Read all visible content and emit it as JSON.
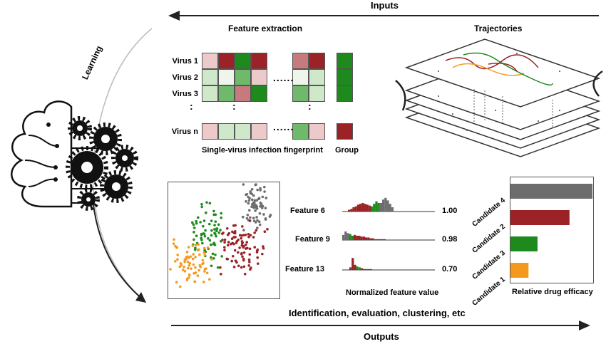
{
  "header": {
    "inputs_label": "Inputs",
    "outputs_label": "Outputs"
  },
  "learning_label": "Learning",
  "feature_extraction": {
    "title": "Feature extraction",
    "rows": [
      {
        "label": "Virus 1"
      },
      {
        "label": "Virus 2"
      },
      {
        "label": "Virus 3"
      },
      {
        "label": "Virus n"
      }
    ],
    "ellipsis": "......",
    "vertical_ellipsis": ":",
    "caption_fingerprint": "Single-virus infection fingerprint",
    "caption_group": "Group"
  },
  "trajectories": {
    "title": "Trajectories"
  },
  "features": {
    "xlabel": "Normalized feature value",
    "items": [
      {
        "label": "Feature 6",
        "value": "1.00"
      },
      {
        "label": "Feature 9",
        "value": "0.98"
      },
      {
        "label": "Feature 13",
        "value": "0.70"
      }
    ]
  },
  "chart_data": {
    "type": "bar",
    "orientation": "horizontal",
    "title": "",
    "xlabel": "Relative drug efficacy",
    "ylabel": "",
    "categories": [
      "Candidate 4",
      "Candidate 2",
      "Candidate 3",
      "Candidate 1"
    ],
    "values": [
      100,
      72,
      33,
      22
    ],
    "colors": [
      "#6d6d6d",
      "#9b2226",
      "#1e8a1e",
      "#f39a1e"
    ],
    "xlim": [
      0,
      100
    ],
    "grid": false
  },
  "bottom_caption": "Identification, evaluation, clustering, etc",
  "colors": {
    "red": "#9b2226",
    "green": "#1e8a1e",
    "orange": "#f39a1e",
    "gray": "#6d6d6d",
    "light_green": "#cfe8c9",
    "light_red": "#eccaca"
  }
}
